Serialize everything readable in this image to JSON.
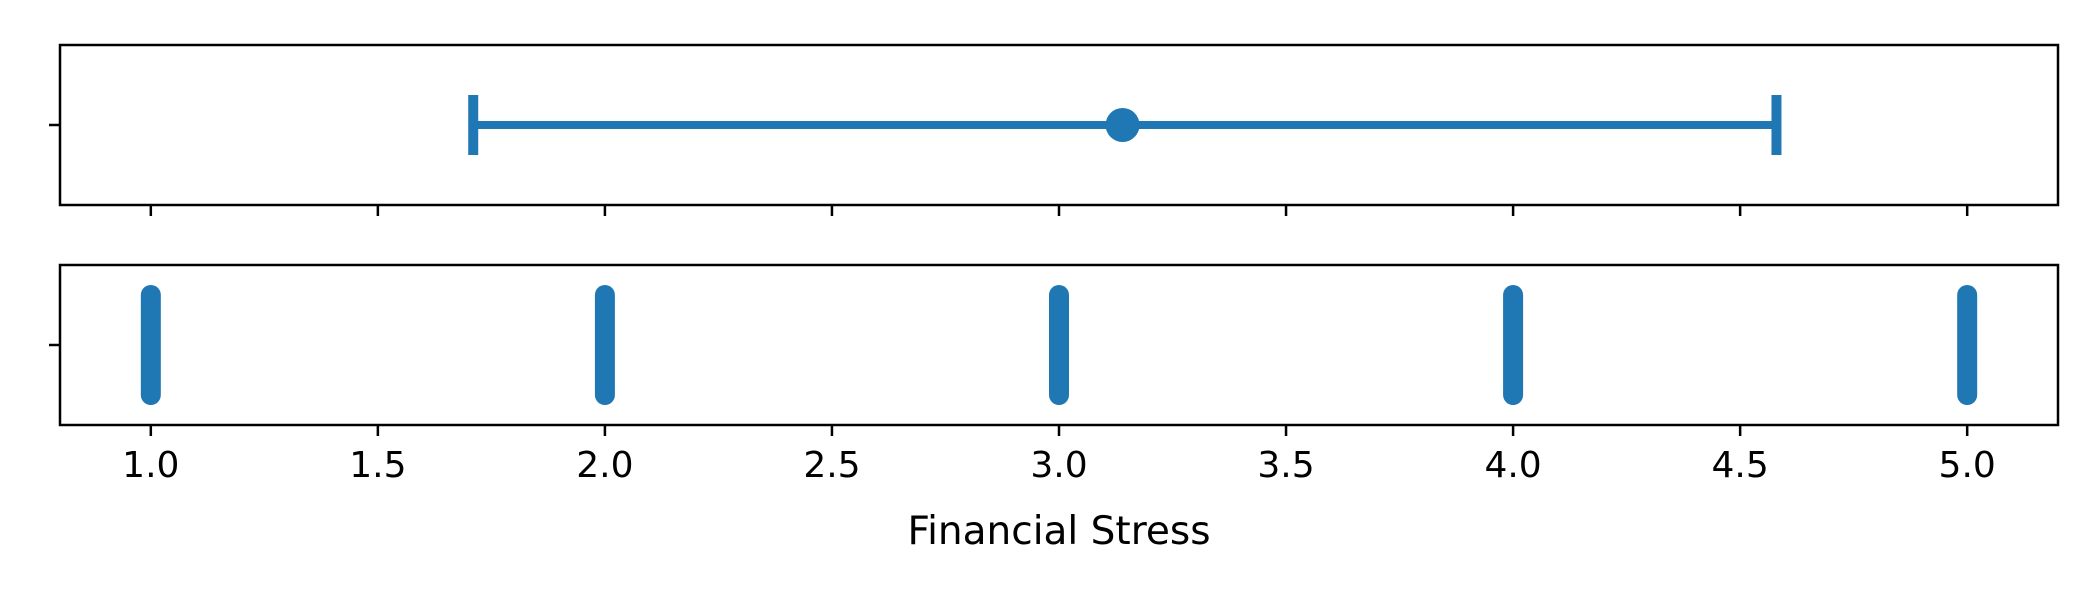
{
  "chart_data": [
    {
      "type": "errorbar",
      "panel": "top",
      "x": [
        3.14
      ],
      "xerr_low": [
        1.71
      ],
      "xerr_high": [
        4.58
      ],
      "xlim": [
        0.8,
        5.2
      ],
      "xticks": [
        1.0,
        1.5,
        2.0,
        2.5,
        3.0,
        3.5,
        4.0,
        4.5,
        5.0
      ],
      "color": "#1f77b4"
    },
    {
      "type": "scatter",
      "panel": "bottom",
      "x": [
        1.0,
        2.0,
        3.0,
        4.0,
        5.0
      ],
      "xlim": [
        0.8,
        5.2
      ],
      "xticks": [
        1.0,
        1.5,
        2.0,
        2.5,
        3.0,
        3.5,
        4.0,
        4.5,
        5.0
      ],
      "xtick_labels": [
        "1.0",
        "1.5",
        "2.0",
        "2.5",
        "3.0",
        "3.5",
        "4.0",
        "4.5",
        "5.0"
      ],
      "xlabel": "Financial Stress",
      "color": "#1f77b4"
    }
  ]
}
